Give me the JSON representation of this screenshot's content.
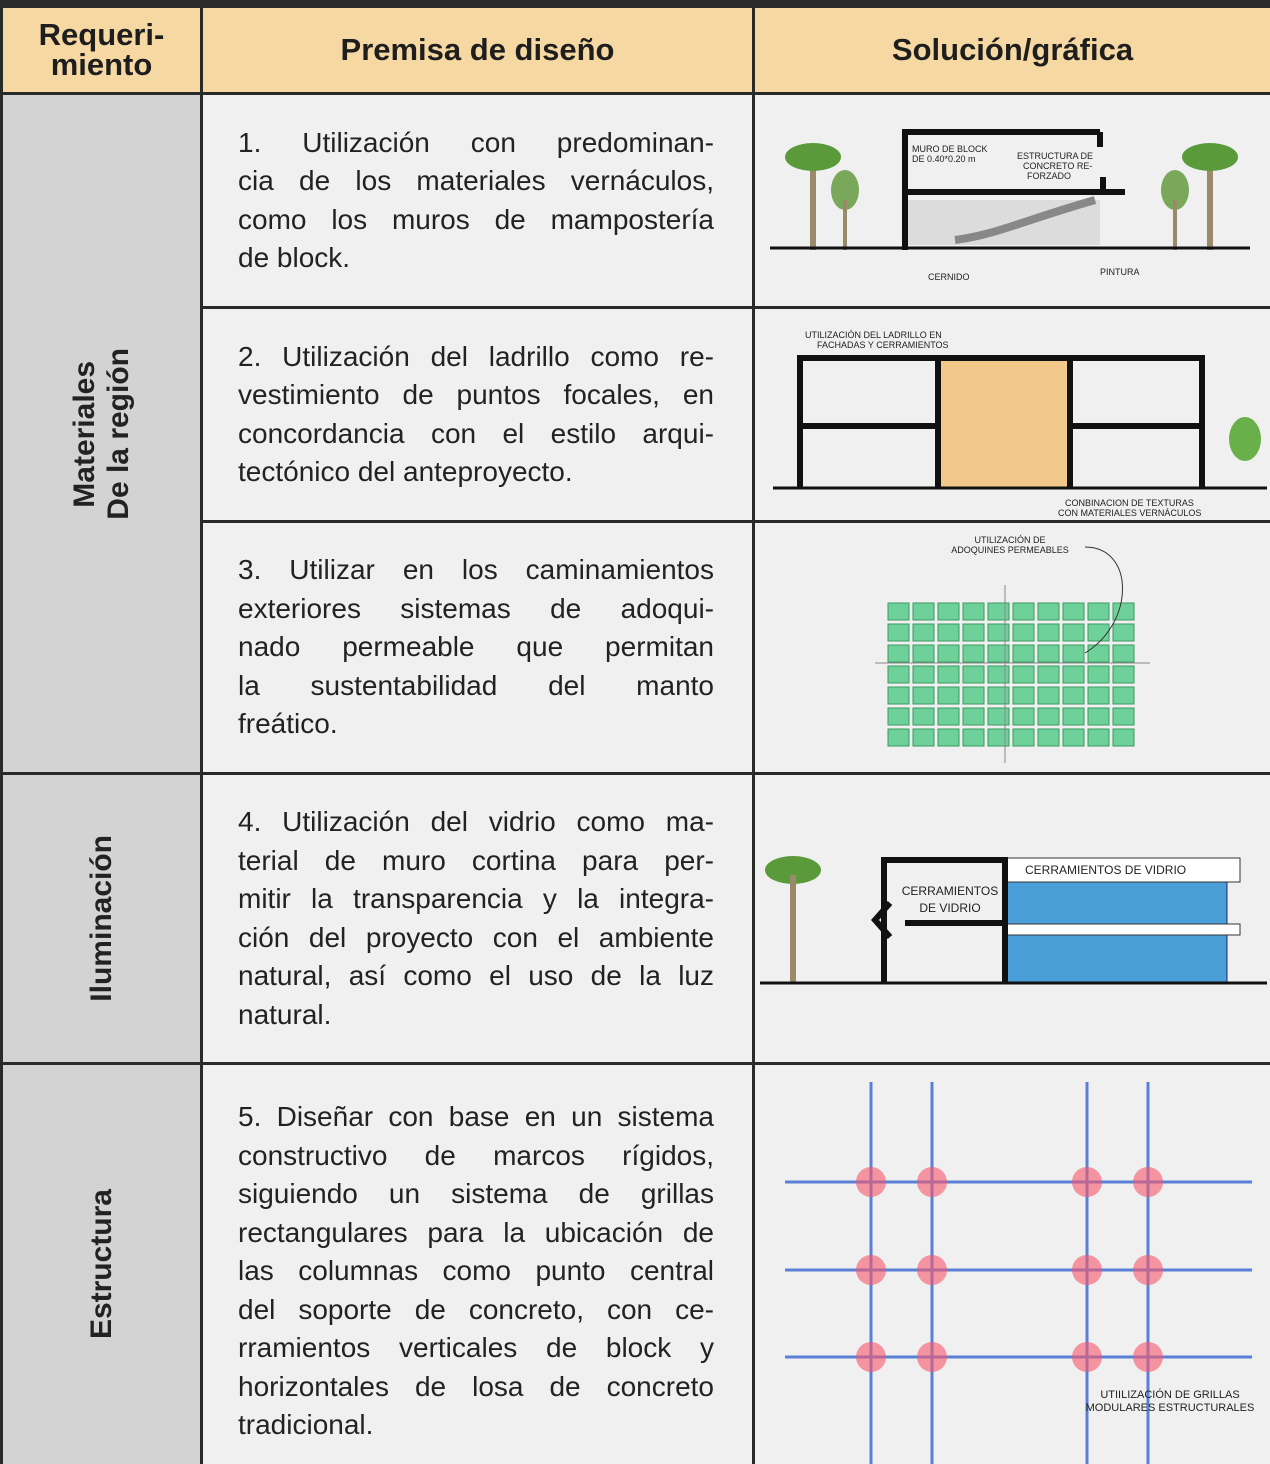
{
  "header": {
    "columns": [
      [
        "Requeri-",
        "miento"
      ],
      [
        "Premisa de diseño"
      ],
      [
        "Solución/gráfica"
      ]
    ]
  },
  "groups": [
    {
      "label": [
        "Materiales",
        "De la región"
      ]
    },
    {
      "label": [
        "Iluminación"
      ]
    },
    {
      "label": [
        "Estructura"
      ]
    }
  ],
  "rows": [
    {
      "premise": [
        "1. Utilización con predominan-",
        "cia de los materiales vernáculos,",
        "como los muros de mampostería",
        "de block."
      ],
      "figure_labels": [
        [
          "MURO DE BLOCK",
          "DE 0.40*0.20 m"
        ],
        [
          "ESTRUCTURA DE",
          "CONCRETO RE-",
          "FORZADO"
        ],
        [
          "CERNIDO"
        ],
        [
          "PINTURA"
        ]
      ]
    },
    {
      "premise": [
        "2. Utilización del ladrillo como re-",
        "vestimiento de puntos focales, en",
        "concordancia con el estilo arqui-",
        "tectónico del anteproyecto."
      ],
      "figure_labels": [
        [
          "UTILIZACIÓN DEL LADRILLO  EN",
          "FACHADAS Y CERRAMIENTOS"
        ],
        [
          "CONBINACION DE TEXTURAS",
          "CON MATERIALES VERNÁCULOS"
        ]
      ]
    },
    {
      "premise": [
        "3. Utilizar en los caminamientos",
        "exteriores sistemas de adoqui-",
        "nado permeable que permitan",
        "la sustentabilidad del manto",
        "freático."
      ],
      "figure_labels": [
        [
          "UTILIZACIÓN DE",
          "ADOQUINES PERMEABLES"
        ]
      ]
    },
    {
      "premise": [
        "4. Utilización del vidrio como ma-",
        "terial de muro cortina para per-",
        "mitir la transparencia y la integra-",
        "ción del proyecto con el ambiente",
        "natural, así como el uso de la luz",
        "natural."
      ],
      "figure_labels": [
        [
          "CERRAMIENTOS DE VIDRIO"
        ],
        [
          "CERRAMIENTOS",
          "DE VIDRIO"
        ]
      ]
    },
    {
      "premise": [
        "5. Diseñar con base en un sistema",
        "constructivo de marcos rígidos,",
        "siguiendo un sistema de grillas",
        "rectangulares para la ubicación de",
        "las columnas como punto central",
        "del soporte de concreto, con ce-",
        "rramientos verticales de block y",
        "horizontales de losa de concreto",
        "tradicional."
      ],
      "figure_labels": [
        [
          "UTIILIZACIÓN DE GRILLAS",
          "MODULARES ESTRUCTURALES"
        ]
      ]
    }
  ]
}
